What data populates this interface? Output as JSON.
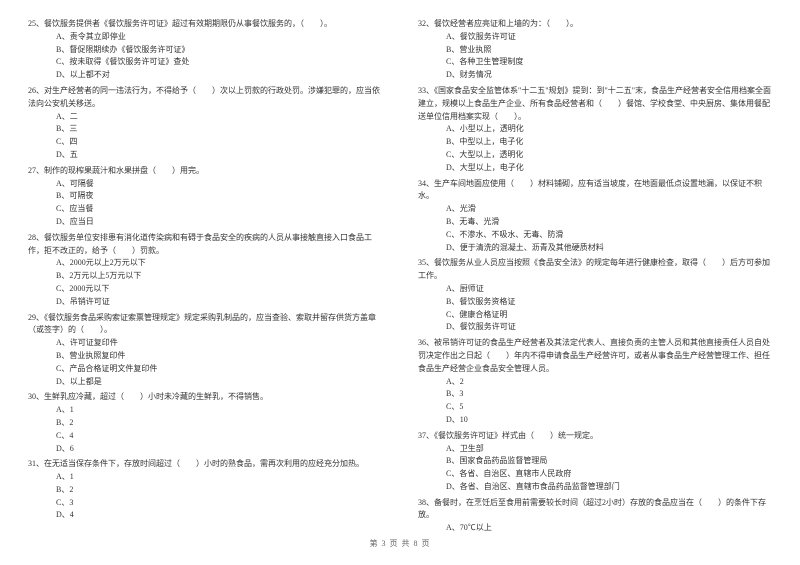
{
  "footer": "第 3 页 共 8 页",
  "left": [
    {
      "num": "25",
      "text": "餐饮服务提供者《餐饮服务许可证》超过有效期期限仍从事餐饮服务的，（　　）。",
      "opts": [
        "A、责令其立即停业",
        "B、督促限期续办《餐饮服务许可证》",
        "C、按未取得《餐饮服务许可证》查处",
        "D、以上都不对"
      ]
    },
    {
      "num": "26",
      "text": "对生产经营者的同一违法行为，不得给予（　　）次以上罚款的行政处罚。涉嫌犯罪的，应当依法向公安机关移送。",
      "opts": [
        "A、二",
        "B、三",
        "C、四",
        "D、五"
      ]
    },
    {
      "num": "27",
      "text": "制作的现榨果蔬汁和水果拼盘（　　）用完。",
      "opts": [
        "A、可隔餐",
        "B、可隔夜",
        "C、应当餐",
        "D、应当日"
      ]
    },
    {
      "num": "28",
      "text": "餐饮服务单位安排患有消化道传染病和有碍于食品安全的疾病的人员从事接触直接入口食品工作，拒不改正的，给予（　　）罚款。",
      "opts": [
        "A、2000元以上2万元以下",
        "B、2万元以上5万元以下",
        "C、2000元以下",
        "D、吊销许可证"
      ]
    },
    {
      "num": "29",
      "text": "《餐饮服务食品采购索证索票管理规定》规定采购乳制品的，应当查验、索取并留存供货方盖章（或签字）的（　　）。",
      "opts": [
        "A、许可证复印件",
        "B、营业执照复印件",
        "C、产品合格证明文件复印件",
        "D、以上都是"
      ]
    },
    {
      "num": "30",
      "text": "生鲜乳应冷藏，超过（　　）小时未冷藏的生鲜乳，不得销售。",
      "opts": [
        "A、1",
        "B、2",
        "C、4",
        "D、6"
      ]
    },
    {
      "num": "31",
      "text": "在无适当保存条件下，存放时间超过（　　）小时的熟食品，需再次利用的应经充分加热。",
      "opts": [
        "A、1",
        "B、2",
        "C、3",
        "D、4"
      ]
    }
  ],
  "right": [
    {
      "num": "32",
      "text": "餐饮经营者应亮证和上墙的为：（　　）。",
      "opts": [
        "A、餐饮服务许可证",
        "B、营业执照",
        "C、各种卫生管理制度",
        "D、财务情况"
      ]
    },
    {
      "num": "33",
      "text": "《国家食品安全监管体系\"十二五\"规划》提到：到\"十二五\"末，食品生产经营者安全信用档案全面建立，规模以上食品生产企业、所有食品经营者和（　　）餐馆、学校食堂、中央厨房、集体用餐配送单位信用档案实现（　　）。",
      "opts": [
        "A、小型以上，透明化",
        "B、中型以上，电子化",
        "C、大型以上，透明化",
        "D、大型以上，电子化"
      ]
    },
    {
      "num": "34",
      "text": "生产车间地面应使用（　　）材料铺砌，应有适当坡度，在地面最低点设置地漏，以保证不积水。",
      "opts": [
        "A、光滑",
        "B、无毒、光滑",
        "C、不渗水、不吸水、无毒、防滑",
        "D、便于清洗的混凝土、沥青及其他硬质材料"
      ]
    },
    {
      "num": "35",
      "text": "餐饮服务从业人员应当按照《食品安全法》的规定每年进行健康检查，取得（　　）后方可参加工作。",
      "opts": [
        "A、厨师证",
        "B、餐饮服务资格证",
        "C、健康合格证明",
        "D、餐饮服务许可证"
      ]
    },
    {
      "num": "36",
      "text": "被吊销许可证的食品生产经营者及其法定代表人、直接负责的主管人员和其他直接责任人员自处罚决定作出之日起（　　）年内不得申请食品生产经营许可，或者从事食品生产经营管理工作、担任食品生产经营企业食品安全管理人员。",
      "opts": [
        "A、2",
        "B、3",
        "C、5",
        "D、10"
      ]
    },
    {
      "num": "37",
      "text": "《餐饮服务许可证》样式由（　　）统一规定。",
      "opts": [
        "A、卫生部",
        "B、国家食品药品监督管理局",
        "C、各省、自治区、直辖市人民政府",
        "D、各省、自治区、直辖市食品药品监督管理部门"
      ]
    },
    {
      "num": "38",
      "text": "备餐时，在烹饪后至食用前需要较长时间（超过2小时）存放的食品应当在（　　）的条件下存放。",
      "opts": [
        "A、70℃以上"
      ]
    }
  ]
}
